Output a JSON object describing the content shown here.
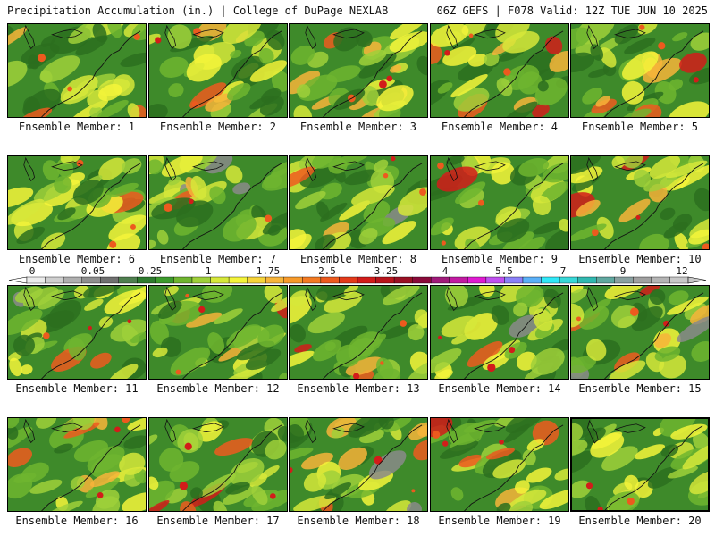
{
  "header": {
    "left": "Precipitation Accumulation (in.) | College of DuPage NEXLAB",
    "right": "06Z GEFS | F078 Valid: 12Z TUE JUN 10 2025"
  },
  "members": [
    {
      "label": "Ensemble Member: 1"
    },
    {
      "label": "Ensemble Member: 2"
    },
    {
      "label": "Ensemble Member: 3"
    },
    {
      "label": "Ensemble Member: 4"
    },
    {
      "label": "Ensemble Member: 5"
    },
    {
      "label": "Ensemble Member: 6"
    },
    {
      "label": "Ensemble Member: 7"
    },
    {
      "label": "Ensemble Member: 8"
    },
    {
      "label": "Ensemble Member: 9"
    },
    {
      "label": "Ensemble Member: 10"
    },
    {
      "label": "Ensemble Member: 11"
    },
    {
      "label": "Ensemble Member: 12"
    },
    {
      "label": "Ensemble Member: 13"
    },
    {
      "label": "Ensemble Member: 14"
    },
    {
      "label": "Ensemble Member: 15"
    },
    {
      "label": "Ensemble Member: 16"
    },
    {
      "label": "Ensemble Member: 17"
    },
    {
      "label": "Ensemble Member: 18"
    },
    {
      "label": "Ensemble Member: 19"
    },
    {
      "label": "Ensemble Member: 20"
    }
  ],
  "colorbar": {
    "tick_labels": [
      "0",
      "0.05",
      "0.25",
      "1",
      "1.75",
      "2.5",
      "3.25",
      "4",
      "5.5",
      "7",
      "9",
      "12"
    ],
    "colors": [
      "#ebebeb",
      "#cfcfcf",
      "#afafaf",
      "#8f8f8f",
      "#707070",
      "#4f7f4f",
      "#2e7b2e",
      "#3c9a2c",
      "#6fb52f",
      "#9fd03a",
      "#d6e83a",
      "#f4f43a",
      "#f7d43a",
      "#f7b43a",
      "#f79a2a",
      "#f37a22",
      "#ed5a1e",
      "#e43a1a",
      "#d21c1a",
      "#b8141c",
      "#9a1024",
      "#8a0a3a",
      "#a01a7a",
      "#c21aa2",
      "#e01ad2",
      "#c050f0",
      "#8a80f8",
      "#5ab0f8",
      "#30e8f8",
      "#38d8d8",
      "#30b8b0",
      "#60a8a0",
      "#8aa0a0",
      "#a0a0a0",
      "#b4b4b4",
      "#c8c8c8"
    ]
  },
  "map": {
    "base_color": "#3e8a2a",
    "blob_colors": [
      "#2c6e1e",
      "#6fb52f",
      "#9fd03a",
      "#d6e83a",
      "#f4f43a",
      "#f7b43a",
      "#ed5a1e",
      "#d21c1a",
      "#8a0a3a",
      "#8a8a8a"
    ]
  }
}
